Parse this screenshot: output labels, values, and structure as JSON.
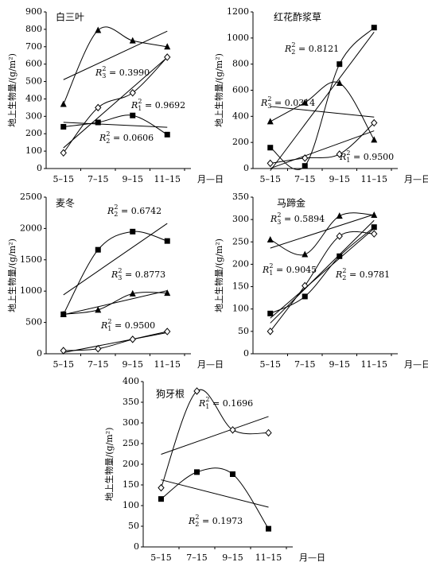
{
  "chart_data": [
    {
      "type": "line",
      "title": "白三叶",
      "y_label": "地上生物量/(g/m²)",
      "x_label": "月—日",
      "categories": [
        "5–15",
        "7–15",
        "9–15",
        "11–15"
      ],
      "ylim": [
        0,
        900
      ],
      "yticks": [
        0,
        100,
        200,
        300,
        400,
        500,
        600,
        700,
        800,
        900
      ],
      "series": [
        {
          "marker": "diamond",
          "color": "#000000",
          "values": [
            90,
            350,
            435,
            640
          ]
        },
        {
          "marker": "square",
          "color": "#000000",
          "values": [
            240,
            265,
            305,
            195
          ]
        },
        {
          "marker": "triangle",
          "color": "#000000",
          "values": [
            370,
            795,
            735,
            700
          ]
        }
      ],
      "annotations": [
        {
          "symbol": "R",
          "sub": "3",
          "sup": "2",
          "text": " = 0.3990"
        },
        {
          "symbol": "R",
          "sub": "1",
          "sup": "2",
          "text": " = 0.9692"
        },
        {
          "symbol": "R",
          "sub": "2",
          "sup": "2",
          "text": " = 0.0606"
        }
      ]
    },
    {
      "type": "line",
      "title": "红花酢浆草",
      "y_label": "地上生物量/(g/m²)",
      "x_label": "月—日",
      "categories": [
        "5–15",
        "7–15",
        "9–15",
        "11–15"
      ],
      "ylim": [
        0,
        1200
      ],
      "yticks": [
        0,
        200,
        400,
        600,
        800,
        1000,
        1200
      ],
      "series": [
        {
          "marker": "diamond",
          "color": "#000000",
          "values": [
            40,
            80,
            110,
            350
          ]
        },
        {
          "marker": "square",
          "color": "#000000",
          "values": [
            160,
            20,
            800,
            1080
          ]
        },
        {
          "marker": "triangle",
          "color": "#000000",
          "values": [
            360,
            505,
            655,
            220
          ]
        }
      ],
      "annotations": [
        {
          "symbol": "R",
          "sub": "2",
          "sup": "2",
          "text": " = 0.8121"
        },
        {
          "symbol": "R",
          "sub": "3",
          "sup": "2",
          "text": " = 0.0314"
        },
        {
          "symbol": "R",
          "sub": "1",
          "sup": "2",
          "text": " = 0.9500"
        }
      ]
    },
    {
      "type": "line",
      "title": "麦冬",
      "y_label": "地上生物量/(g/m²)",
      "x_label": "月—日",
      "categories": [
        "5–15",
        "7–15",
        "9–15",
        "11–15"
      ],
      "ylim": [
        0,
        2500
      ],
      "yticks": [
        0,
        500,
        1000,
        1500,
        2000,
        2500
      ],
      "series": [
        {
          "marker": "diamond",
          "color": "#000000",
          "values": [
            50,
            80,
            230,
            355
          ]
        },
        {
          "marker": "square",
          "color": "#000000",
          "values": [
            630,
            1660,
            1950,
            1800
          ]
        },
        {
          "marker": "triangle",
          "color": "#000000",
          "values": [
            630,
            700,
            960,
            970
          ]
        }
      ],
      "annotations": [
        {
          "symbol": "R",
          "sub": "2",
          "sup": "2",
          "text": " = 0.6742"
        },
        {
          "symbol": "R",
          "sub": "3",
          "sup": "2",
          "text": " = 0.8773"
        },
        {
          "symbol": "R",
          "sub": "1",
          "sup": "2",
          "text": " = 0.9500"
        }
      ]
    },
    {
      "type": "line",
      "title": "马蹄金",
      "y_label": "地上生物量/(g/m²)",
      "x_label": "月—日",
      "categories": [
        "5–15",
        "7–15",
        "9–15",
        "11–15"
      ],
      "ylim": [
        0,
        350
      ],
      "yticks": [
        0,
        50,
        100,
        150,
        200,
        250,
        300,
        350
      ],
      "series": [
        {
          "marker": "diamond",
          "color": "#000000",
          "values": [
            50,
            152,
            263,
            268
          ]
        },
        {
          "marker": "square",
          "color": "#000000",
          "values": [
            90,
            128,
            218,
            283
          ]
        },
        {
          "marker": "triangle",
          "color": "#000000",
          "values": [
            255,
            222,
            308,
            310
          ]
        }
      ],
      "annotations": [
        {
          "symbol": "R",
          "sub": "3",
          "sup": "2",
          "text": " = 0.5894"
        },
        {
          "symbol": "R",
          "sub": "1",
          "sup": "2",
          "text": " = 0.9045"
        },
        {
          "symbol": "R",
          "sub": "2",
          "sup": "2",
          "text": " = 0.9781"
        }
      ]
    },
    {
      "type": "line",
      "title": "狗牙根",
      "y_label": "地上生物量/(g/m²)",
      "x_label": "月—日",
      "categories": [
        "5–15",
        "7–15",
        "9–15",
        "11–15"
      ],
      "ylim": [
        0,
        400
      ],
      "yticks": [
        0,
        50,
        100,
        150,
        200,
        250,
        300,
        350,
        400
      ],
      "series": [
        {
          "marker": "diamond",
          "color": "#000000",
          "values": [
            143,
            377,
            283,
            276
          ]
        },
        {
          "marker": "square",
          "color": "#000000",
          "values": [
            116,
            181,
            176,
            44
          ]
        }
      ],
      "annotations": [
        {
          "symbol": "R",
          "sub": "1",
          "sup": "2",
          "text": " = 0.1696"
        },
        {
          "symbol": "R",
          "sub": "2",
          "sup": "2",
          "text": " = 0.1973"
        }
      ]
    }
  ]
}
